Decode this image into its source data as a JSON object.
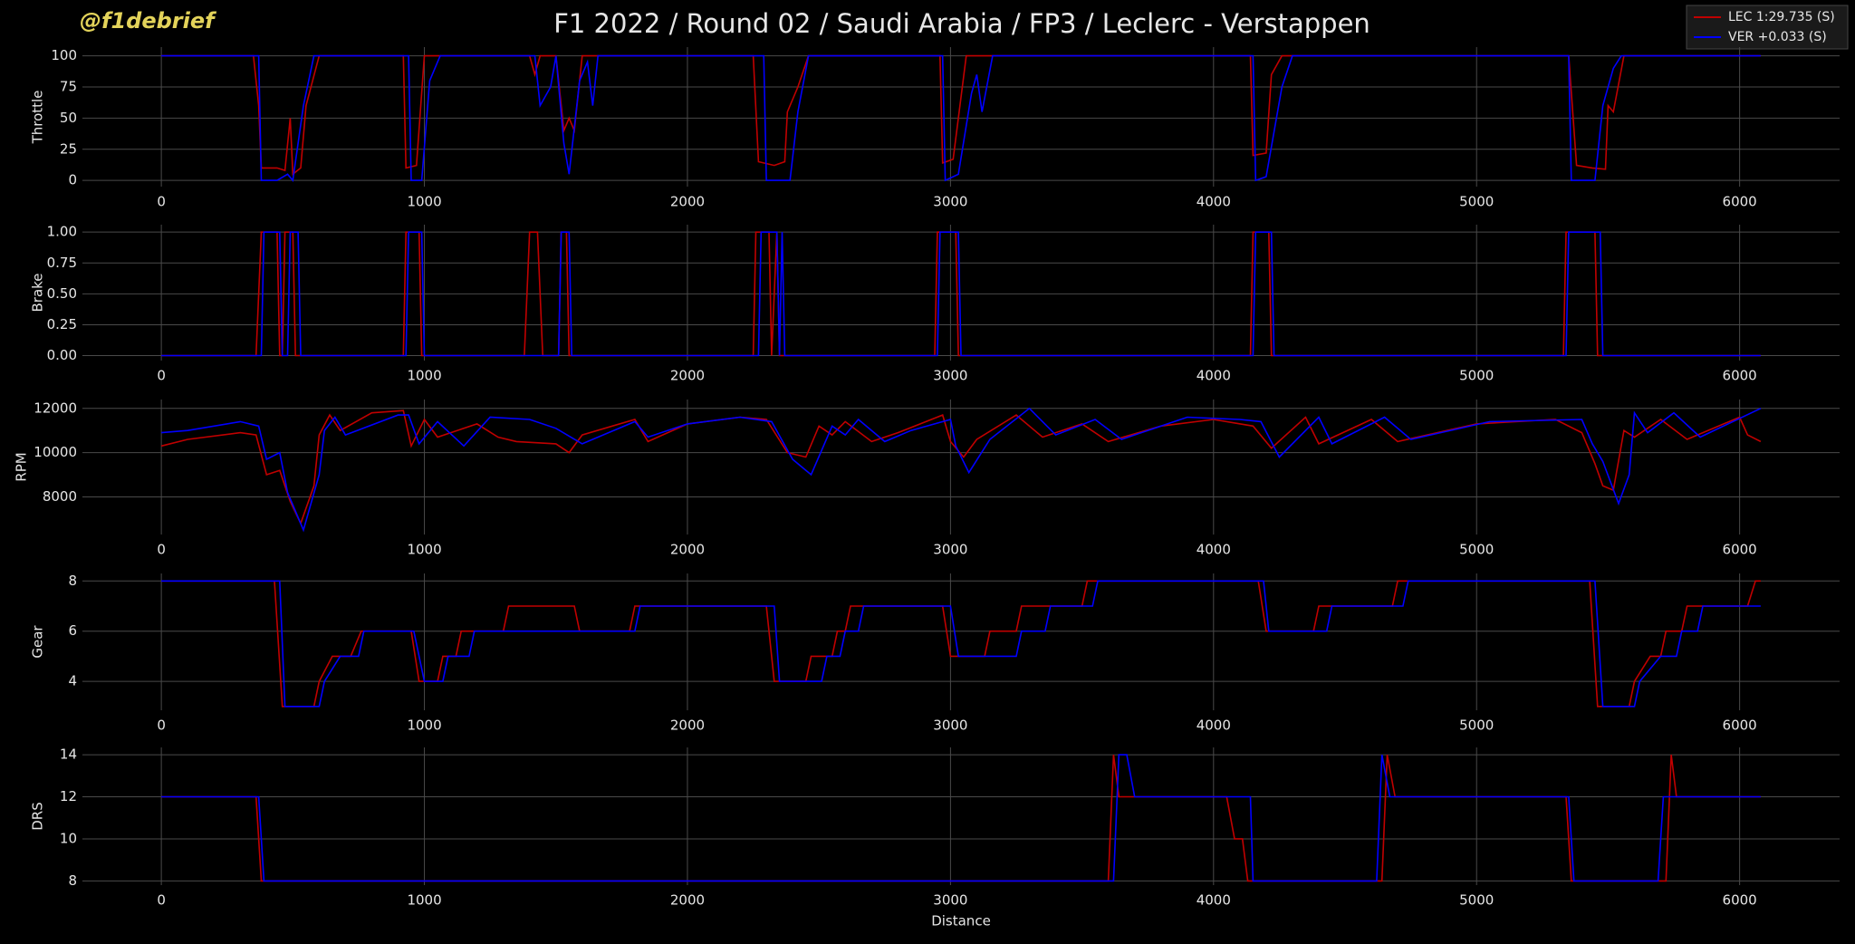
{
  "header": {
    "title": "F1 2022 / Round 02 / Saudi Arabia / FP3 / Leclerc - Verstappen",
    "watermark": "@f1debrief"
  },
  "chart_data": [
    {
      "type": "line",
      "ylabel": "Throttle",
      "xlim": [
        -300,
        6380
      ],
      "xticks": [
        0,
        1000,
        2000,
        3000,
        4000,
        5000,
        6000
      ],
      "ylim": [
        -5,
        107
      ],
      "yticks": [
        0,
        25,
        50,
        75,
        100
      ],
      "grid": true,
      "legend": "upper right",
      "series": [
        {
          "name": "LEC 1:29.735 (S)",
          "color": "#c00000",
          "x": [
            0,
            350,
            370,
            380,
            440,
            470,
            490,
            500,
            530,
            550,
            600,
            920,
            930,
            970,
            1000,
            1400,
            1420,
            1440,
            1500,
            1530,
            1550,
            1570,
            1600,
            2250,
            2270,
            2330,
            2370,
            2380,
            2420,
            2460,
            2960,
            2970,
            3010,
            3060,
            4140,
            4150,
            4200,
            4220,
            4260,
            5350,
            5380,
            5440,
            5490,
            5500,
            5520,
            5560,
            6080
          ],
          "values": [
            100,
            100,
            60,
            10,
            10,
            8,
            50,
            5,
            10,
            60,
            100,
            100,
            10,
            12,
            100,
            100,
            85,
            100,
            100,
            40,
            50,
            40,
            100,
            100,
            15,
            12,
            15,
            55,
            75,
            100,
            100,
            14,
            17,
            100,
            100,
            20,
            22,
            85,
            100,
            100,
            12,
            10,
            9,
            60,
            55,
            100,
            100
          ]
        },
        {
          "name": "VER +0.033 (S)",
          "color": "#0000ff",
          "x": [
            0,
            370,
            380,
            440,
            480,
            500,
            540,
            580,
            940,
            950,
            990,
            1020,
            1060,
            1420,
            1440,
            1480,
            1500,
            1530,
            1550,
            1590,
            1620,
            1640,
            1660,
            2290,
            2300,
            2390,
            2420,
            2460,
            2970,
            2980,
            3030,
            3080,
            3100,
            3120,
            3160,
            4150,
            4160,
            4200,
            4260,
            4300,
            5350,
            5360,
            5450,
            5480,
            5520,
            5550,
            6080
          ],
          "values": [
            100,
            100,
            0,
            0,
            5,
            0,
            60,
            100,
            100,
            0,
            0,
            80,
            100,
            100,
            60,
            75,
            100,
            30,
            5,
            80,
            95,
            60,
            100,
            100,
            0,
            0,
            55,
            100,
            100,
            0,
            5,
            70,
            85,
            55,
            100,
            100,
            0,
            3,
            75,
            100,
            100,
            0,
            0,
            60,
            90,
            100,
            100
          ]
        }
      ]
    },
    {
      "type": "line",
      "ylabel": "Brake",
      "xlim": [
        -300,
        6380
      ],
      "xticks": [
        0,
        1000,
        2000,
        3000,
        4000,
        5000,
        6000
      ],
      "ylim": [
        -0.04,
        1.06
      ],
      "yticks": [
        {
          "value": 0,
          "label": "0.00"
        },
        {
          "value": 0.25,
          "label": "0.25"
        },
        {
          "value": 0.5,
          "label": "0.50"
        },
        {
          "value": 0.75,
          "label": "0.75"
        },
        {
          "value": 1,
          "label": "1.00"
        }
      ],
      "grid": true,
      "series": [
        {
          "color": "#c00000",
          "x": [
            0,
            360,
            380,
            440,
            450,
            460,
            470,
            500,
            510,
            920,
            930,
            980,
            990,
            1380,
            1400,
            1430,
            1450,
            1510,
            1520,
            1540,
            1550,
            2250,
            2260,
            2310,
            2320,
            2340,
            2350,
            2940,
            2950,
            3020,
            3030,
            4140,
            4150,
            4210,
            4220,
            5330,
            5340,
            5450,
            5460,
            6080
          ],
          "values": [
            0,
            0,
            1,
            1,
            0,
            0,
            1,
            1,
            0,
            0,
            1,
            1,
            0,
            0,
            1,
            1,
            0,
            0,
            1,
            1,
            0,
            0,
            1,
            1,
            0,
            1,
            0,
            0,
            1,
            1,
            0,
            0,
            1,
            1,
            0,
            0,
            1,
            1,
            0,
            0
          ]
        },
        {
          "color": "#0000ff",
          "x": [
            0,
            380,
            390,
            450,
            460,
            480,
            490,
            520,
            530,
            930,
            940,
            990,
            1000,
            1510,
            1520,
            1550,
            1560,
            2270,
            2280,
            2340,
            2350,
            2360,
            2370,
            2950,
            2960,
            3030,
            3040,
            4150,
            4160,
            4220,
            4230,
            5340,
            5350,
            5470,
            5480,
            6080
          ],
          "values": [
            0,
            0,
            1,
            1,
            0,
            0,
            1,
            1,
            0,
            0,
            1,
            1,
            0,
            0,
            1,
            1,
            0,
            0,
            1,
            1,
            0,
            1,
            0,
            0,
            1,
            1,
            0,
            0,
            1,
            1,
            0,
            0,
            1,
            1,
            0,
            0
          ]
        }
      ]
    },
    {
      "type": "line",
      "ylabel": "RPM",
      "xlim": [
        -300,
        6380
      ],
      "xticks": [
        0,
        1000,
        2000,
        3000,
        4000,
        5000,
        6000
      ],
      "ylim": [
        6300,
        12400
      ],
      "yticks": [
        8000,
        10000,
        12000
      ],
      "grid": true,
      "series": [
        {
          "color": "#c00000",
          "x": [
            0,
            100,
            300,
            360,
            400,
            450,
            490,
            530,
            580,
            600,
            640,
            680,
            800,
            920,
            950,
            1000,
            1050,
            1200,
            1280,
            1350,
            1500,
            1550,
            1600,
            1800,
            1850,
            2000,
            2200,
            2300,
            2380,
            2450,
            2500,
            2550,
            2600,
            2700,
            2800,
            2970,
            3000,
            3050,
            3100,
            3250,
            3350,
            3500,
            3600,
            3800,
            4000,
            4150,
            4220,
            4350,
            4400,
            4600,
            4700,
            5000,
            5300,
            5400,
            5450,
            5480,
            5520,
            5560,
            5600,
            5700,
            5800,
            6000,
            6030,
            6080
          ],
          "values": [
            10300,
            10600,
            10900,
            10800,
            9000,
            9200,
            7800,
            6800,
            8500,
            10800,
            11700,
            11000,
            11800,
            11900,
            10300,
            11500,
            10700,
            11300,
            10700,
            10500,
            10400,
            10000,
            10800,
            11500,
            10500,
            11300,
            11600,
            11500,
            10000,
            9800,
            11200,
            10800,
            11400,
            10500,
            10900,
            11700,
            10500,
            9800,
            10600,
            11700,
            10700,
            11300,
            10500,
            11200,
            11500,
            11200,
            10200,
            11600,
            10400,
            11500,
            10500,
            11300,
            11500,
            10900,
            9500,
            8500,
            8300,
            11000,
            10700,
            11500,
            10600,
            11600,
            10800,
            10500
          ]
        },
        {
          "color": "#0000ff",
          "x": [
            0,
            100,
            300,
            370,
            400,
            450,
            480,
            540,
            600,
            620,
            660,
            700,
            900,
            940,
            980,
            1050,
            1150,
            1250,
            1400,
            1500,
            1600,
            1800,
            1850,
            2000,
            2200,
            2320,
            2400,
            2470,
            2550,
            2600,
            2650,
            2750,
            2850,
            3000,
            3020,
            3070,
            3150,
            3300,
            3400,
            3550,
            3650,
            3900,
            4100,
            4180,
            4250,
            4400,
            4450,
            4650,
            4750,
            5050,
            5400,
            5440,
            5480,
            5540,
            5580,
            5600,
            5650,
            5750,
            5850,
            6080
          ],
          "values": [
            10900,
            11000,
            11400,
            11200,
            9700,
            10000,
            8200,
            6500,
            9000,
            11000,
            11600,
            10800,
            11700,
            11700,
            10400,
            11400,
            10300,
            11600,
            11500,
            11100,
            10400,
            11400,
            10700,
            11300,
            11600,
            11400,
            9700,
            9000,
            11200,
            10800,
            11500,
            10500,
            11000,
            11500,
            10300,
            9100,
            10600,
            12000,
            10800,
            11500,
            10600,
            11600,
            11500,
            11400,
            9800,
            11600,
            10400,
            11600,
            10600,
            11400,
            11500,
            10400,
            9600,
            7700,
            9000,
            11800,
            10900,
            11800,
            10700,
            12000
          ]
        }
      ]
    },
    {
      "type": "line",
      "ylabel": "Gear",
      "xlim": [
        -300,
        6380
      ],
      "xticks": [
        0,
        1000,
        2000,
        3000,
        4000,
        5000,
        6000
      ],
      "ylim": [
        2.85,
        8.3
      ],
      "yticks": [
        4,
        6,
        8
      ],
      "grid": true,
      "series": [
        {
          "color": "#c00000",
          "x": [
            0,
            430,
            460,
            580,
            600,
            650,
            720,
            760,
            950,
            980,
            1050,
            1070,
            1120,
            1140,
            1300,
            1320,
            1570,
            1590,
            1780,
            1800,
            2300,
            2330,
            2450,
            2470,
            2550,
            2570,
            2600,
            2620,
            2970,
            3000,
            3130,
            3150,
            3250,
            3270,
            3500,
            3520,
            4170,
            4200,
            4380,
            4400,
            4680,
            4700,
            5430,
            5460,
            5580,
            5600,
            5660,
            5700,
            5720,
            5780,
            5800,
            6030,
            6060,
            6080
          ],
          "values": [
            8,
            8,
            3,
            3,
            4,
            5,
            5,
            6,
            6,
            4,
            4,
            5,
            5,
            6,
            6,
            7,
            7,
            6,
            6,
            7,
            7,
            4,
            4,
            5,
            5,
            6,
            6,
            7,
            7,
            5,
            5,
            6,
            6,
            7,
            7,
            8,
            8,
            6,
            6,
            7,
            7,
            8,
            8,
            3,
            3,
            4,
            5,
            5,
            6,
            6,
            7,
            7,
            8,
            8
          ]
        },
        {
          "color": "#0000ff",
          "x": [
            0,
            450,
            470,
            600,
            620,
            680,
            750,
            770,
            960,
            980,
            1000,
            1070,
            1090,
            1170,
            1190,
            1800,
            1820,
            2330,
            2350,
            2510,
            2530,
            2580,
            2600,
            2650,
            2670,
            3000,
            3030,
            3250,
            3270,
            3360,
            3380,
            3540,
            3560,
            4190,
            4210,
            4430,
            4450,
            4720,
            4740,
            5450,
            5480,
            5600,
            5620,
            5700,
            5760,
            5780,
            5840,
            5860,
            6080
          ],
          "values": [
            8,
            8,
            3,
            3,
            4,
            5,
            5,
            6,
            6,
            5,
            4,
            4,
            5,
            5,
            6,
            6,
            7,
            7,
            4,
            4,
            5,
            5,
            6,
            6,
            7,
            7,
            5,
            5,
            6,
            6,
            7,
            7,
            8,
            8,
            6,
            6,
            7,
            7,
            8,
            8,
            3,
            3,
            4,
            5,
            5,
            6,
            6,
            7,
            7
          ]
        }
      ]
    },
    {
      "type": "line",
      "ylabel": "DRS",
      "xlabel": "Distance",
      "xlim": [
        -300,
        6380
      ],
      "xticks": [
        0,
        1000,
        2000,
        3000,
        4000,
        5000,
        6000
      ],
      "ylim": [
        7.8,
        14.35
      ],
      "yticks": [
        8,
        10,
        12,
        14
      ],
      "grid": true,
      "series": [
        {
          "color": "#c00000",
          "x": [
            0,
            360,
            380,
            3600,
            3620,
            3640,
            4050,
            4080,
            4110,
            4130,
            4640,
            4660,
            4690,
            5340,
            5360,
            5720,
            5740,
            5760,
            6080
          ],
          "values": [
            12,
            12,
            8,
            8,
            14,
            12,
            12,
            10,
            10,
            8,
            8,
            14,
            12,
            12,
            8,
            8,
            14,
            12,
            12
          ]
        },
        {
          "color": "#0000ff",
          "x": [
            0,
            370,
            390,
            3620,
            3640,
            3670,
            3700,
            4140,
            4150,
            4620,
            4640,
            4670,
            5350,
            5370,
            5690,
            5710,
            6080
          ],
          "values": [
            12,
            12,
            8,
            8,
            14,
            14,
            12,
            12,
            8,
            8,
            14,
            12,
            12,
            8,
            8,
            12,
            12
          ]
        }
      ]
    }
  ]
}
